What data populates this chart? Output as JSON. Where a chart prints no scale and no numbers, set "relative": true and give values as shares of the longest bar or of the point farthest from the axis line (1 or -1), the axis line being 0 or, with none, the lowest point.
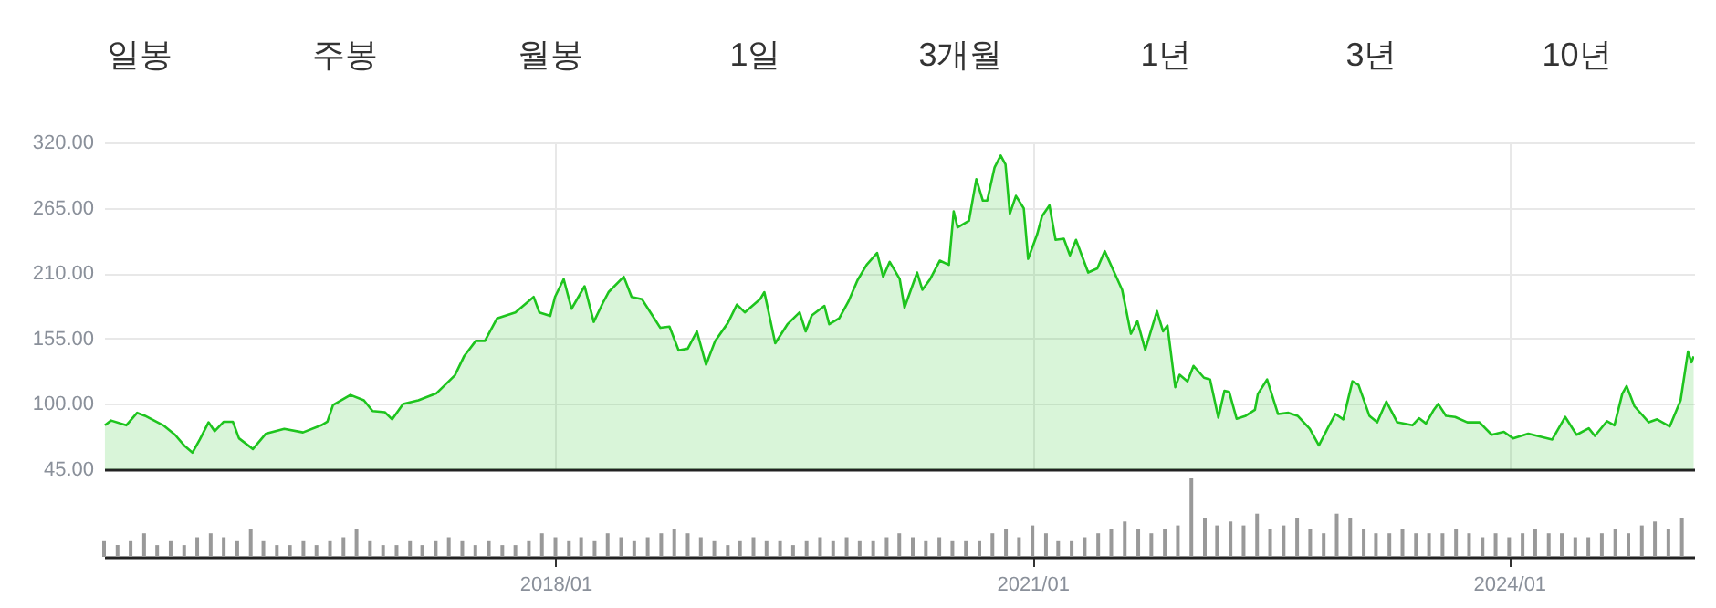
{
  "chart_data": [
    {
      "type": "other",
      "annotations": [
        "일봉",
        "주봉",
        "월봉",
        "1일",
        "3개월",
        "1년",
        "3년",
        "10년"
      ]
    },
    {
      "type": "area",
      "x": [
        "2015-03-03",
        "2015-03-17",
        "2015-04-21",
        "2015-05-16",
        "2015-06-03",
        "2015-07-15",
        "2015-08-11",
        "2015-09-01",
        "2015-09-20",
        "2015-10-07",
        "2015-10-27",
        "2015-11-10",
        "2015-12-01",
        "2015-12-22",
        "2016-01-05",
        "2016-02-06",
        "2016-03-07",
        "2016-04-18",
        "2016-05-31",
        "2016-07-12",
        "2016-07-26",
        "2016-08-08",
        "2016-09-17",
        "2016-10-18",
        "2016-11-07",
        "2016-12-05",
        "2016-12-22",
        "2017-01-16",
        "2017-02-20",
        "2017-04-03",
        "2017-05-15",
        "2017-06-05",
        "2017-07-02",
        "2017-07-23",
        "2017-08-20",
        "2017-10-01",
        "2017-11-12",
        "2017-11-25",
        "2017-12-20",
        "2017-12-31",
        "2018-01-20",
        "2018-02-07",
        "2018-03-09",
        "2018-03-30",
        "2018-04-20",
        "2018-05-03",
        "2018-06-07",
        "2018-06-25",
        "2018-07-19",
        "2018-08-09",
        "2018-08-30",
        "2018-09-20",
        "2018-10-11",
        "2018-11-01",
        "2018-11-22",
        "2018-12-13",
        "2019-01-03",
        "2019-02-01",
        "2019-02-22",
        "2019-03-12",
        "2019-04-16",
        "2019-04-26",
        "2019-05-21",
        "2019-06-18",
        "2019-07-16",
        "2019-07-30",
        "2019-08-13",
        "2019-09-11",
        "2019-09-22",
        "2019-10-15",
        "2019-11-05",
        "2019-11-26",
        "2019-12-17",
        "2020-01-10",
        "2020-01-24",
        "2020-02-08",
        "2020-03-02",
        "2020-03-13",
        "2020-04-11",
        "2020-04-23",
        "2020-05-11",
        "2020-06-02",
        "2020-06-23",
        "2020-07-04",
        "2020-07-13",
        "2020-08-08",
        "2020-08-25",
        "2020-09-09",
        "2020-09-19",
        "2020-10-06",
        "2020-10-20",
        "2020-10-31",
        "2020-11-10",
        "2020-11-24",
        "2020-12-12",
        "2020-12-22",
        "2021-01-12",
        "2021-01-23",
        "2021-02-09",
        "2021-02-23",
        "2021-03-14",
        "2021-03-28",
        "2021-04-11",
        "2021-05-09",
        "2021-05-30",
        "2021-06-16",
        "2021-07-08",
        "2021-07-26",
        "2021-08-15",
        "2021-08-30",
        "2021-09-17",
        "2021-10-14",
        "2021-10-28",
        "2021-11-07",
        "2021-11-25",
        "2021-12-05",
        "2021-12-23",
        "2022-01-06",
        "2022-01-30",
        "2022-02-13",
        "2022-03-04",
        "2022-03-18",
        "2022-03-29",
        "2022-04-15",
        "2022-05-06",
        "2022-05-27",
        "2022-06-03",
        "2022-06-24",
        "2022-07-19",
        "2022-08-12",
        "2022-09-02",
        "2022-09-30",
        "2022-10-21",
        "2022-11-11",
        "2022-11-28",
        "2022-12-16",
        "2023-01-06",
        "2023-01-20",
        "2023-02-14",
        "2023-03-04",
        "2023-03-25",
        "2023-04-19",
        "2023-05-24",
        "2023-06-08",
        "2023-06-24",
        "2023-07-12",
        "2023-07-22",
        "2023-08-09",
        "2023-08-30",
        "2023-09-27",
        "2023-10-25",
        "2023-11-22",
        "2023-12-20",
        "2024-01-10",
        "2024-02-14",
        "2024-04-09",
        "2024-05-09",
        "2024-06-04",
        "2024-07-02",
        "2024-07-16",
        "2024-08-13",
        "2024-08-30",
        "2024-09-17",
        "2024-09-27",
        "2024-10-15",
        "2024-11-17",
        "2024-12-06",
        "2025-01-04",
        "2025-01-29",
        "2025-02-15",
        "2025-02-23",
        "2025-02-28"
      ],
      "series": [
        {
          "color": "#1ec41e",
          "values": [
            82,
            86,
            82,
            92.5,
            90,
            82,
            74,
            65,
            59,
            70,
            84.5,
            77,
            85,
            85,
            71,
            62,
            75,
            79,
            76,
            82,
            85,
            99,
            107.5,
            103,
            94,
            93,
            87,
            100,
            103,
            109,
            124,
            140,
            153,
            153,
            172,
            177,
            190,
            177,
            174,
            190,
            205,
            180,
            199,
            169,
            185,
            194,
            207,
            190,
            188,
            176,
            164,
            165,
            145,
            146.5,
            161,
            133,
            153,
            168,
            183.5,
            177,
            188,
            194,
            151,
            167,
            177,
            161,
            174.5,
            182.5,
            167,
            172,
            186,
            204,
            217,
            227,
            207,
            219.5,
            205,
            181,
            210.5,
            196,
            205,
            220.5,
            217,
            262,
            248.5,
            254,
            289,
            271,
            271,
            299,
            309,
            301.5,
            260,
            275,
            264.5,
            222,
            243,
            258,
            267,
            238,
            239,
            225,
            238,
            210.5,
            214,
            228.5,
            210.5,
            196,
            159,
            169.5,
            145.5,
            178,
            161,
            166,
            114,
            124.5,
            119,
            132,
            122,
            120.5,
            88.5,
            111,
            110,
            87.5,
            90,
            95,
            108.5,
            120.5,
            91.5,
            92.5,
            90,
            79,
            65,
            80,
            91.5,
            87,
            119,
            116,
            90,
            84.5,
            102,
            84.5,
            82,
            88,
            83.5,
            95,
            100,
            90,
            89,
            84.5,
            84.5,
            74,
            76.5,
            71,
            75,
            70,
            89,
            74,
            79.5,
            73,
            85.5,
            82,
            108.5,
            115,
            98,
            84.5,
            87,
            81,
            103,
            144,
            135,
            140
          ]
        }
      ],
      "xlim": [
        "2015-03-01",
        "2025-03-01"
      ],
      "xticks": [
        {
          "value": "2018-01-01",
          "label": null
        },
        {
          "value": "2021-01-01",
          "label": null
        },
        {
          "value": "2024-01-01",
          "label": null
        }
      ],
      "ylim": [
        45,
        320
      ],
      "yticks": [
        {
          "value": 45,
          "label": "45.00"
        },
        {
          "value": 100,
          "label": "100.00"
        },
        {
          "value": 155,
          "label": "155.00"
        },
        {
          "value": 210,
          "label": "210.00"
        },
        {
          "value": 265,
          "label": "265.00"
        },
        {
          "value": 320,
          "label": "320.00"
        }
      ],
      "grid": true,
      "tick_labels": "y"
    },
    {
      "type": "bar",
      "relative": true,
      "tick_labels": "x",
      "x": [
        "2015-03",
        "2015-04",
        "2015-05",
        "2015-06",
        "2015-07",
        "2015-08",
        "2015-09",
        "2015-10",
        "2015-11",
        "2015-12",
        "2016-01",
        "2016-02",
        "2016-03",
        "2016-04",
        "2016-05",
        "2016-06",
        "2016-07",
        "2016-08",
        "2016-09",
        "2016-10",
        "2016-11",
        "2016-12",
        "2017-01",
        "2017-02",
        "2017-03",
        "2017-04",
        "2017-05",
        "2017-06",
        "2017-07",
        "2017-08",
        "2017-09",
        "2017-10",
        "2017-11",
        "2017-12",
        "2018-01",
        "2018-02",
        "2018-03",
        "2018-04",
        "2018-05",
        "2018-06",
        "2018-07",
        "2018-08",
        "2018-09",
        "2018-10",
        "2018-11",
        "2018-12",
        "2019-01",
        "2019-02",
        "2019-03",
        "2019-04",
        "2019-05",
        "2019-06",
        "2019-07",
        "2019-08",
        "2019-09",
        "2019-10",
        "2019-11",
        "2019-12",
        "2020-01",
        "2020-02",
        "2020-03",
        "2020-04",
        "2020-05",
        "2020-06",
        "2020-07",
        "2020-08",
        "2020-09",
        "2020-10",
        "2020-11",
        "2020-12",
        "2021-01",
        "2021-02",
        "2021-03",
        "2021-04",
        "2021-05",
        "2021-06",
        "2021-07",
        "2021-08",
        "2021-09",
        "2021-10",
        "2021-11",
        "2021-12",
        "2022-01",
        "2022-02",
        "2022-03",
        "2022-04",
        "2022-05",
        "2022-06",
        "2022-07",
        "2022-08",
        "2022-09",
        "2022-10",
        "2022-11",
        "2022-12",
        "2023-01",
        "2023-02",
        "2023-03",
        "2023-04",
        "2023-05",
        "2023-06",
        "2023-07",
        "2023-08",
        "2023-09",
        "2023-10",
        "2023-11",
        "2023-12",
        "2024-01",
        "2024-02",
        "2024-03",
        "2024-04",
        "2024-05",
        "2024-06",
        "2024-07",
        "2024-08",
        "2024-09",
        "2024-10",
        "2024-11",
        "2024-12",
        "2025-01",
        "2025-02"
      ],
      "series": [
        {
          "color": "#999999",
          "values": [
            0.2,
            0.15,
            0.2,
            0.3,
            0.15,
            0.2,
            0.15,
            0.25,
            0.3,
            0.25,
            0.2,
            0.35,
            0.2,
            0.15,
            0.15,
            0.2,
            0.15,
            0.2,
            0.25,
            0.35,
            0.2,
            0.15,
            0.15,
            0.2,
            0.15,
            0.2,
            0.25,
            0.2,
            0.15,
            0.2,
            0.15,
            0.15,
            0.2,
            0.3,
            0.25,
            0.2,
            0.25,
            0.2,
            0.3,
            0.25,
            0.2,
            0.25,
            0.3,
            0.35,
            0.3,
            0.25,
            0.2,
            0.15,
            0.2,
            0.25,
            0.2,
            0.2,
            0.15,
            0.2,
            0.25,
            0.2,
            0.25,
            0.2,
            0.2,
            0.25,
            0.3,
            0.25,
            0.2,
            0.25,
            0.2,
            0.2,
            0.2,
            0.3,
            0.35,
            0.25,
            0.4,
            0.3,
            0.2,
            0.2,
            0.25,
            0.3,
            0.35,
            0.45,
            0.35,
            0.3,
            0.35,
            0.4,
            1,
            0.5,
            0.4,
            0.45,
            0.4,
            0.55,
            0.35,
            0.4,
            0.5,
            0.35,
            0.3,
            0.55,
            0.5,
            0.35,
            0.3,
            0.3,
            0.35,
            0.3,
            0.3,
            0.3,
            0.35,
            0.3,
            0.25,
            0.3,
            0.25,
            0.3,
            0.35,
            0.3,
            0.3,
            0.25,
            0.25,
            0.3,
            0.35,
            0.3,
            0.4,
            0.45,
            0.35,
            0.5
          ]
        }
      ],
      "xlim": [
        "2015-03-01",
        "2025-03-01"
      ],
      "xticks": [
        {
          "value": "2018-01-01",
          "label": "2018/01"
        },
        {
          "value": "2021-01-01",
          "label": "2021/01"
        },
        {
          "value": "2024-01-01",
          "label": "2024/01"
        }
      ]
    }
  ]
}
